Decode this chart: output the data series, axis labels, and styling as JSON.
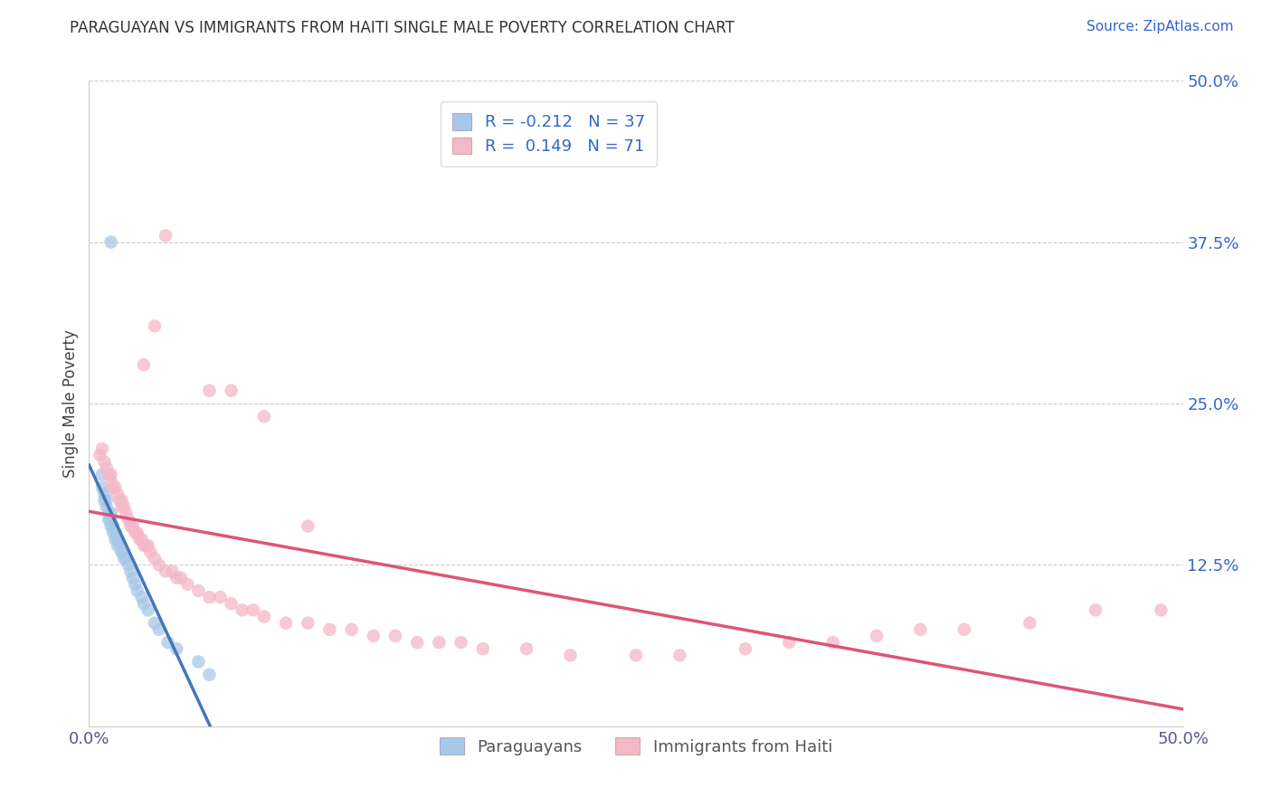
{
  "title": "PARAGUAYAN VS IMMIGRANTS FROM HAITI SINGLE MALE POVERTY CORRELATION CHART",
  "source": "Source: ZipAtlas.com",
  "ylabel": "Single Male Poverty",
  "xlim": [
    0.0,
    0.5
  ],
  "ylim": [
    0.0,
    0.5
  ],
  "ytick_vals_right": [
    0.5,
    0.375,
    0.25,
    0.125
  ],
  "label_paraguayans": "Paraguayans",
  "label_haiti": "Immigrants from Haiti",
  "color_blue": "#a8c8e8",
  "color_pink": "#f4b8c8",
  "color_blue_line": "#4477bb",
  "color_pink_line": "#dd5577",
  "color_blue_dash": "#aabbdd",
  "color_legend_R": "#3366cc",
  "background_color": "#ffffff",
  "grid_color": "#cccccc",
  "par_x": [
    0.006,
    0.006,
    0.007,
    0.007,
    0.008,
    0.008,
    0.009,
    0.009,
    0.01,
    0.01,
    0.01,
    0.011,
    0.011,
    0.012,
    0.012,
    0.013,
    0.013,
    0.014,
    0.015,
    0.015,
    0.016,
    0.017,
    0.018,
    0.019,
    0.02,
    0.021,
    0.022,
    0.024,
    0.025,
    0.027,
    0.03,
    0.032,
    0.036,
    0.04,
    0.05,
    0.055,
    0.01
  ],
  "par_y": [
    0.195,
    0.185,
    0.18,
    0.175,
    0.175,
    0.17,
    0.165,
    0.16,
    0.165,
    0.16,
    0.155,
    0.155,
    0.15,
    0.15,
    0.145,
    0.145,
    0.14,
    0.14,
    0.135,
    0.135,
    0.13,
    0.13,
    0.125,
    0.12,
    0.115,
    0.11,
    0.105,
    0.1,
    0.095,
    0.09,
    0.08,
    0.075,
    0.065,
    0.06,
    0.05,
    0.04,
    0.375
  ],
  "hai_x": [
    0.005,
    0.006,
    0.007,
    0.008,
    0.009,
    0.01,
    0.01,
    0.011,
    0.012,
    0.013,
    0.014,
    0.015,
    0.015,
    0.016,
    0.017,
    0.018,
    0.019,
    0.02,
    0.021,
    0.022,
    0.023,
    0.024,
    0.025,
    0.026,
    0.027,
    0.028,
    0.03,
    0.032,
    0.035,
    0.038,
    0.04,
    0.042,
    0.045,
    0.05,
    0.055,
    0.06,
    0.065,
    0.07,
    0.075,
    0.08,
    0.09,
    0.1,
    0.11,
    0.12,
    0.13,
    0.14,
    0.15,
    0.16,
    0.17,
    0.18,
    0.2,
    0.22,
    0.25,
    0.27,
    0.3,
    0.32,
    0.34,
    0.36,
    0.38,
    0.4,
    0.43,
    0.46,
    0.49,
    0.025,
    0.03,
    0.035,
    0.055,
    0.065,
    0.08,
    0.1
  ],
  "hai_y": [
    0.21,
    0.215,
    0.205,
    0.2,
    0.195,
    0.195,
    0.19,
    0.185,
    0.185,
    0.18,
    0.175,
    0.175,
    0.17,
    0.17,
    0.165,
    0.16,
    0.155,
    0.155,
    0.15,
    0.15,
    0.145,
    0.145,
    0.14,
    0.14,
    0.14,
    0.135,
    0.13,
    0.125,
    0.12,
    0.12,
    0.115,
    0.115,
    0.11,
    0.105,
    0.1,
    0.1,
    0.095,
    0.09,
    0.09,
    0.085,
    0.08,
    0.08,
    0.075,
    0.075,
    0.07,
    0.07,
    0.065,
    0.065,
    0.065,
    0.06,
    0.06,
    0.055,
    0.055,
    0.055,
    0.06,
    0.065,
    0.065,
    0.07,
    0.075,
    0.075,
    0.08,
    0.09,
    0.09,
    0.28,
    0.31,
    0.38,
    0.26,
    0.26,
    0.24,
    0.155
  ]
}
